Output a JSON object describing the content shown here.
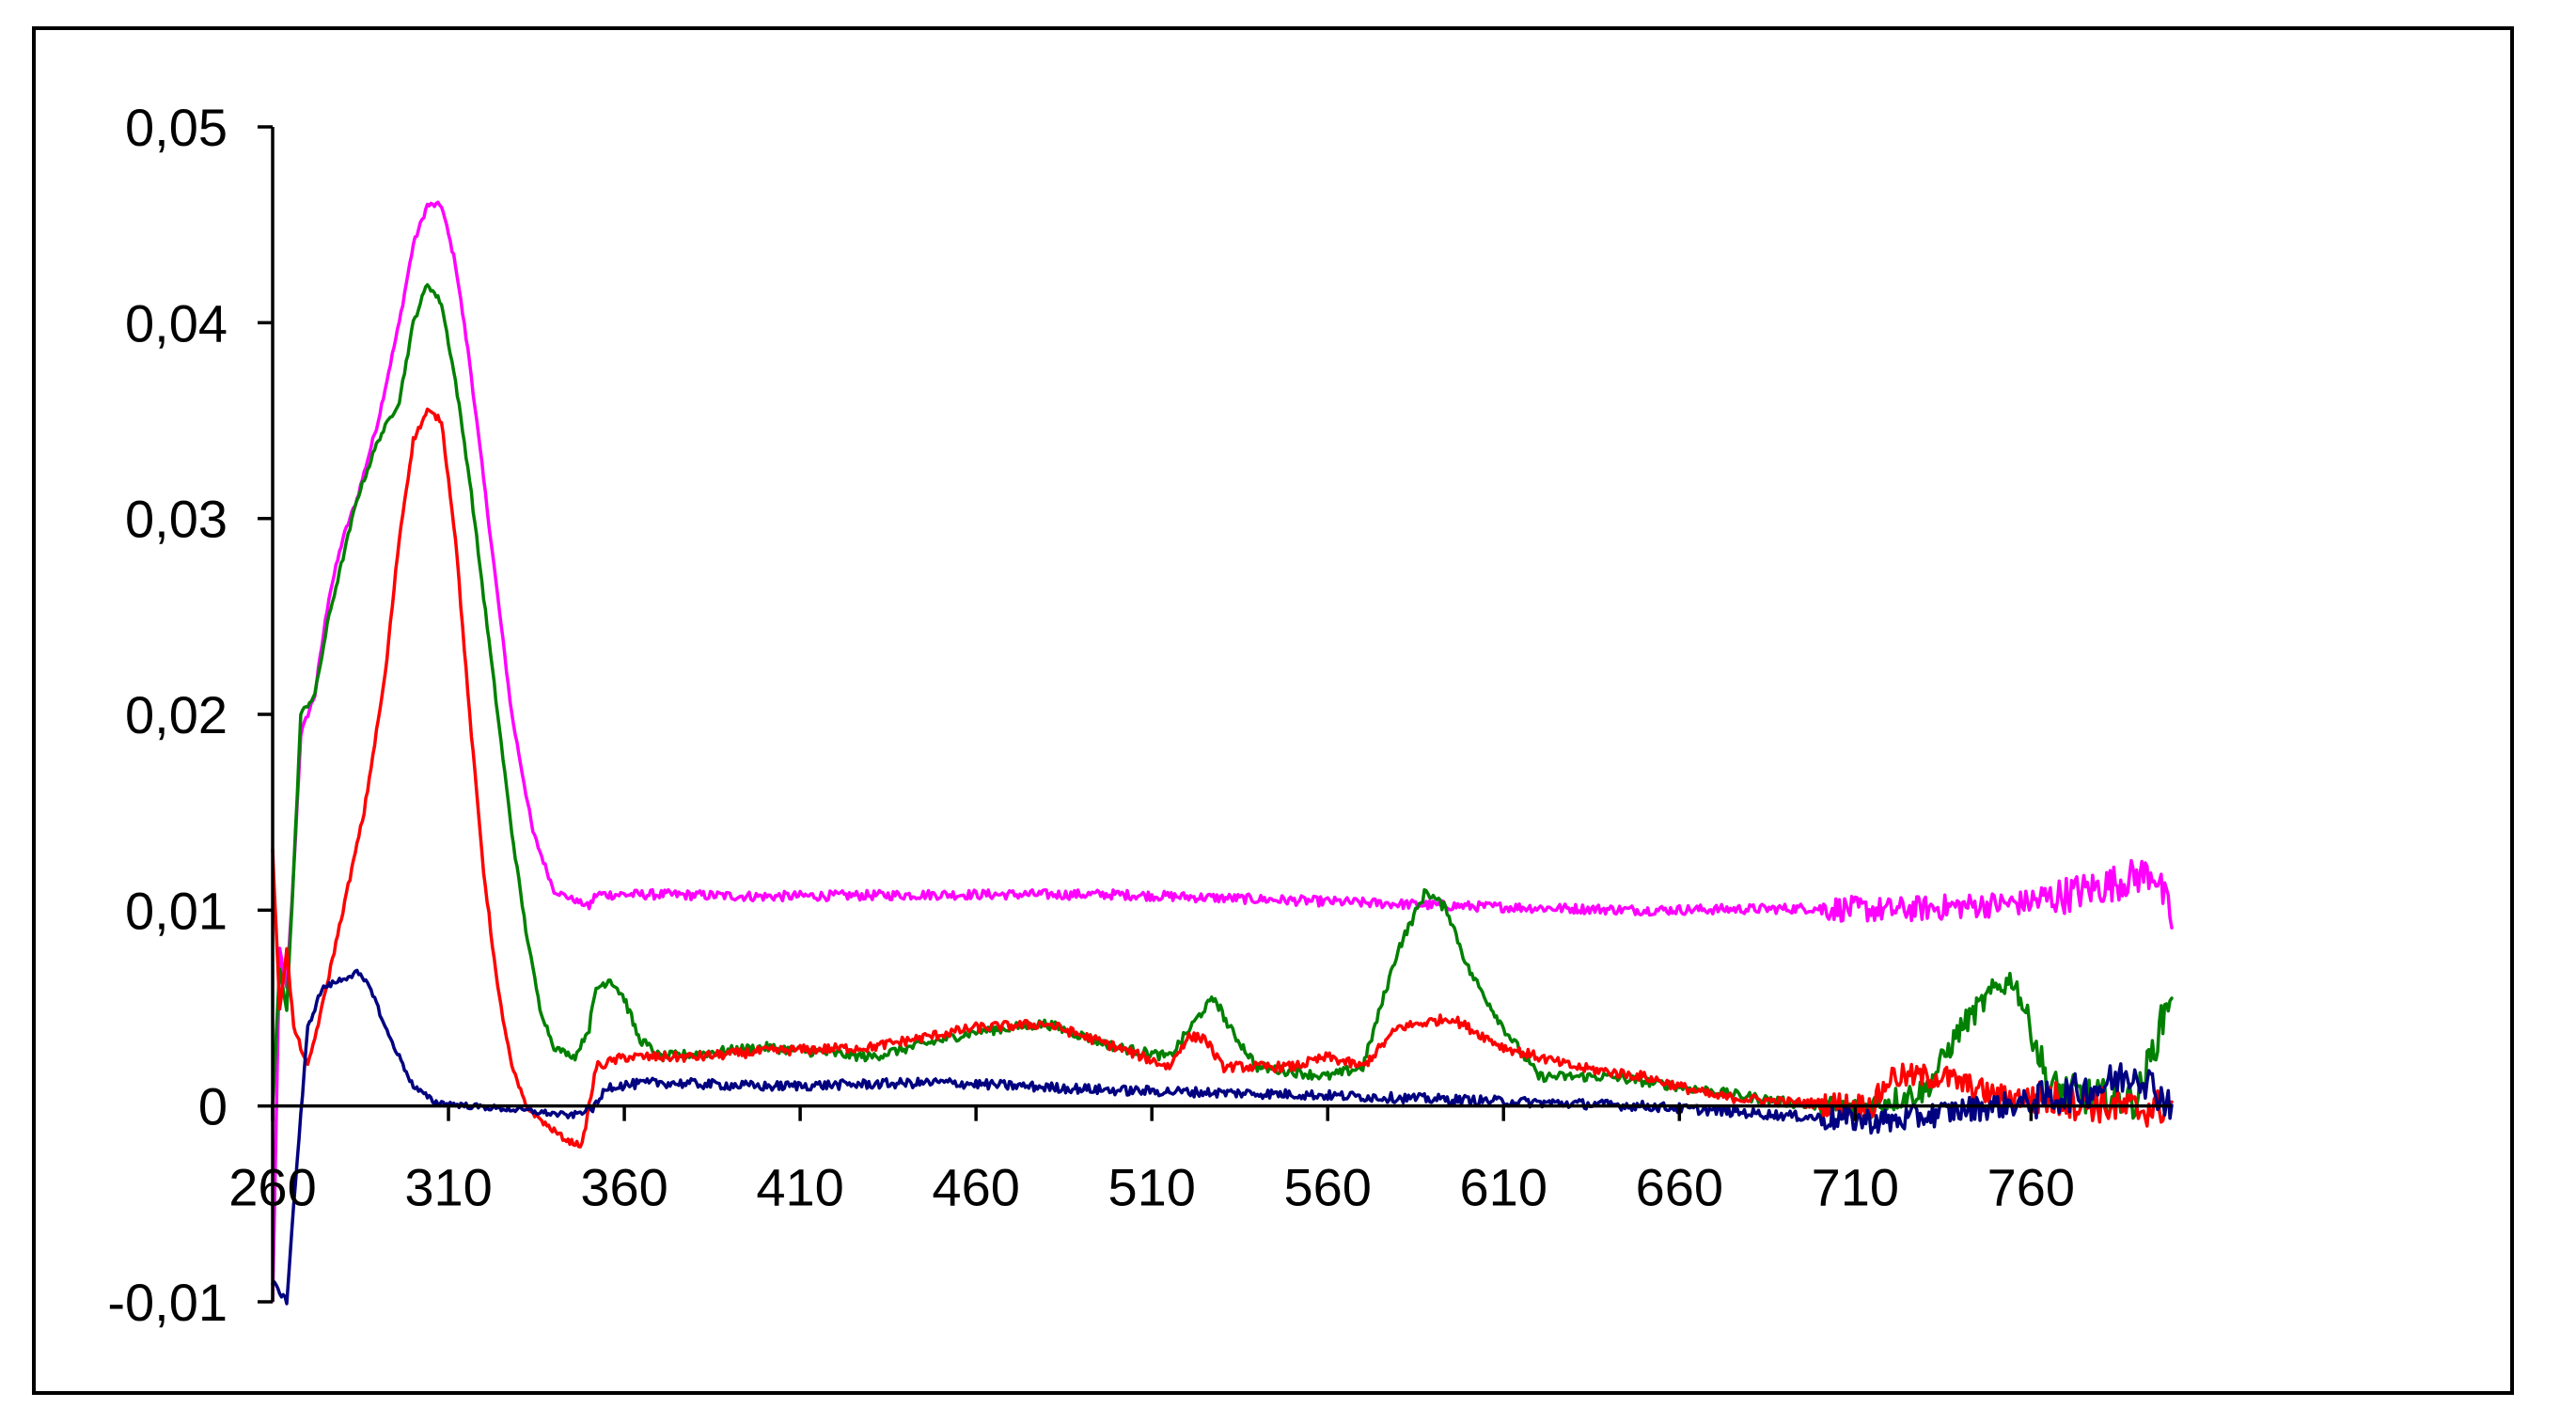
{
  "chart_data": {
    "type": "line",
    "title": "",
    "xlabel": "",
    "ylabel": "",
    "xlim": [
      260,
      800
    ],
    "ylim": [
      -0.01,
      0.05
    ],
    "x_ticks": [
      {
        "value": 260,
        "label": "260"
      },
      {
        "value": 310,
        "label": "310"
      },
      {
        "value": 360,
        "label": "360"
      },
      {
        "value": 410,
        "label": "410"
      },
      {
        "value": 460,
        "label": "460"
      },
      {
        "value": 510,
        "label": "510"
      },
      {
        "value": 560,
        "label": "560"
      },
      {
        "value": 610,
        "label": "610"
      },
      {
        "value": 660,
        "label": "660"
      },
      {
        "value": 710,
        "label": "710"
      },
      {
        "value": 760,
        "label": "760"
      }
    ],
    "y_ticks": [
      {
        "value": 0.05,
        "label": "0,05"
      },
      {
        "value": 0.04,
        "label": "0,04"
      },
      {
        "value": 0.03,
        "label": "0,03"
      },
      {
        "value": 0.02,
        "label": "0,02"
      },
      {
        "value": 0.01,
        "label": "0,01"
      },
      {
        "value": 0,
        "label": "0"
      },
      {
        "value": -0.01,
        "label": "-0,01"
      }
    ],
    "grid": false,
    "legend": "none",
    "series": [
      {
        "color": "#ff00ff",
        "points": [
          [
            260,
            -0.01
          ],
          [
            262,
            0.008
          ],
          [
            264,
            0.006
          ],
          [
            266,
            0.012
          ],
          [
            268,
            0.019
          ],
          [
            272,
            0.021
          ],
          [
            276,
            0.026
          ],
          [
            280,
            0.029
          ],
          [
            284,
            0.031
          ],
          [
            290,
            0.035
          ],
          [
            296,
            0.04
          ],
          [
            300,
            0.044
          ],
          [
            304,
            0.046
          ],
          [
            308,
            0.046
          ],
          [
            312,
            0.043
          ],
          [
            316,
            0.038
          ],
          [
            320,
            0.032
          ],
          [
            324,
            0.026
          ],
          [
            328,
            0.02
          ],
          [
            334,
            0.014
          ],
          [
            340,
            0.011
          ],
          [
            346,
            0.0105
          ],
          [
            350,
            0.0102
          ],
          [
            352,
            0.0108
          ],
          [
            370,
            0.0108
          ],
          [
            400,
            0.0107
          ],
          [
            450,
            0.0108
          ],
          [
            500,
            0.0108
          ],
          [
            550,
            0.0105
          ],
          [
            600,
            0.0102
          ],
          [
            650,
            0.01
          ],
          [
            700,
            0.0101
          ],
          [
            720,
            0.01
          ],
          [
            740,
            0.0102
          ],
          [
            760,
            0.0104
          ],
          [
            780,
            0.0112
          ],
          [
            795,
            0.012
          ],
          [
            800,
            0.0095
          ]
        ]
      },
      {
        "color": "#008000",
        "points": [
          [
            260,
            0.0
          ],
          [
            262,
            0.007
          ],
          [
            264,
            0.005
          ],
          [
            266,
            0.012
          ],
          [
            268,
            0.02
          ],
          [
            272,
            0.021
          ],
          [
            276,
            0.025
          ],
          [
            280,
            0.028
          ],
          [
            284,
            0.031
          ],
          [
            290,
            0.034
          ],
          [
            296,
            0.036
          ],
          [
            300,
            0.04
          ],
          [
            304,
            0.042
          ],
          [
            308,
            0.041
          ],
          [
            312,
            0.037
          ],
          [
            316,
            0.032
          ],
          [
            320,
            0.026
          ],
          [
            324,
            0.02
          ],
          [
            328,
            0.014
          ],
          [
            332,
            0.009
          ],
          [
            336,
            0.005
          ],
          [
            340,
            0.003
          ],
          [
            346,
            0.0025
          ],
          [
            350,
            0.004
          ],
          [
            352,
            0.006
          ],
          [
            356,
            0.0065
          ],
          [
            360,
            0.0055
          ],
          [
            364,
            0.0035
          ],
          [
            370,
            0.0025
          ],
          [
            400,
            0.003
          ],
          [
            430,
            0.0025
          ],
          [
            460,
            0.0038
          ],
          [
            480,
            0.0042
          ],
          [
            500,
            0.003
          ],
          [
            515,
            0.0025
          ],
          [
            525,
            0.005
          ],
          [
            528,
            0.0055
          ],
          [
            532,
            0.004
          ],
          [
            540,
            0.002
          ],
          [
            560,
            0.0015
          ],
          [
            570,
            0.002
          ],
          [
            580,
            0.008
          ],
          [
            588,
            0.011
          ],
          [
            594,
            0.01
          ],
          [
            600,
            0.007
          ],
          [
            610,
            0.004
          ],
          [
            620,
            0.0015
          ],
          [
            640,
            0.0015
          ],
          [
            660,
            0.001
          ],
          [
            690,
            0.0002
          ],
          [
            710,
            -0.0002
          ],
          [
            730,
            0.0008
          ],
          [
            740,
            0.004
          ],
          [
            750,
            0.006
          ],
          [
            755,
            0.0065
          ],
          [
            760,
            0.004
          ],
          [
            765,
            0.001
          ],
          [
            775,
            0.0005
          ],
          [
            790,
            0.0003
          ],
          [
            795,
            0.003
          ],
          [
            800,
            0.006
          ]
        ]
      },
      {
        "color": "#ff0000",
        "points": [
          [
            260,
            0.013
          ],
          [
            262,
            0.005
          ],
          [
            264,
            0.008
          ],
          [
            266,
            0.004
          ],
          [
            270,
            0.002
          ],
          [
            274,
            0.005
          ],
          [
            280,
            0.01
          ],
          [
            286,
            0.015
          ],
          [
            292,
            0.022
          ],
          [
            296,
            0.029
          ],
          [
            300,
            0.034
          ],
          [
            304,
            0.0355
          ],
          [
            308,
            0.035
          ],
          [
            312,
            0.029
          ],
          [
            316,
            0.02
          ],
          [
            320,
            0.012
          ],
          [
            324,
            0.006
          ],
          [
            328,
            0.002
          ],
          [
            332,
            0.0
          ],
          [
            338,
            -0.001
          ],
          [
            344,
            -0.0018
          ],
          [
            348,
            -0.002
          ],
          [
            350,
            0.0
          ],
          [
            352,
            0.002
          ],
          [
            360,
            0.0025
          ],
          [
            380,
            0.0025
          ],
          [
            400,
            0.0028
          ],
          [
            430,
            0.003
          ],
          [
            460,
            0.004
          ],
          [
            480,
            0.0042
          ],
          [
            500,
            0.003
          ],
          [
            515,
            0.002
          ],
          [
            520,
            0.0035
          ],
          [
            525,
            0.0035
          ],
          [
            530,
            0.002
          ],
          [
            550,
            0.002
          ],
          [
            560,
            0.0025
          ],
          [
            570,
            0.002
          ],
          [
            580,
            0.004
          ],
          [
            595,
            0.0045
          ],
          [
            610,
            0.003
          ],
          [
            630,
            0.002
          ],
          [
            650,
            0.0015
          ],
          [
            670,
            0.0005
          ],
          [
            690,
            0.0002
          ],
          [
            715,
            0.0
          ],
          [
            720,
            0.0015
          ],
          [
            735,
            0.0015
          ],
          [
            750,
            0.0005
          ],
          [
            770,
            0.0003
          ],
          [
            790,
            -0.0002
          ],
          [
            800,
            0.0
          ]
        ]
      },
      {
        "color": "#000080",
        "points": [
          [
            260,
            -0.009
          ],
          [
            264,
            -0.01
          ],
          [
            266,
            -0.005
          ],
          [
            270,
            0.004
          ],
          [
            274,
            0.006
          ],
          [
            280,
            0.0065
          ],
          [
            284,
            0.0068
          ],
          [
            288,
            0.006
          ],
          [
            292,
            0.004
          ],
          [
            296,
            0.0025
          ],
          [
            300,
            0.001
          ],
          [
            306,
            0.0002
          ],
          [
            316,
            0.0
          ],
          [
            330,
            -0.0002
          ],
          [
            345,
            -0.0005
          ],
          [
            352,
            0.0
          ],
          [
            355,
            0.001
          ],
          [
            370,
            0.0012
          ],
          [
            400,
            0.001
          ],
          [
            450,
            0.0012
          ],
          [
            500,
            0.0008
          ],
          [
            550,
            0.0006
          ],
          [
            600,
            0.0003
          ],
          [
            650,
            0.0
          ],
          [
            700,
            -0.0006
          ],
          [
            720,
            -0.0008
          ],
          [
            740,
            -0.0002
          ],
          [
            760,
            0.0002
          ],
          [
            780,
            0.001
          ],
          [
            790,
            0.0018
          ],
          [
            800,
            0.0
          ]
        ]
      }
    ]
  }
}
